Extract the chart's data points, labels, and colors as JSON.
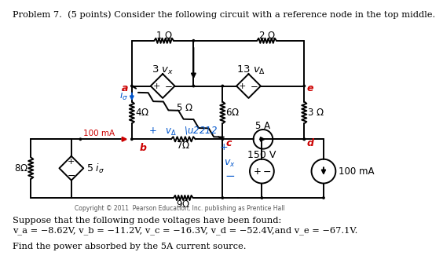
{
  "title": "Problem 7.  (5 points) Consider the following circuit with a reference node in the top middle.",
  "footer": "Copyright © 2011  Pearson Education, Inc. publishing as Prentice Hall",
  "nv_line1": "Suppose that the following node voltages have been found:",
  "nv_line2": "v_a = −8.62V, v_b = −11.2V, v_c = −16.3V, v_d = −52.4V,and v_e = −67.1V.",
  "question": "Find the power absorbed by the 5A current source.",
  "bg_color": "#ffffff",
  "black": "#000000",
  "red": "#cc0000",
  "blue": "#0055cc"
}
